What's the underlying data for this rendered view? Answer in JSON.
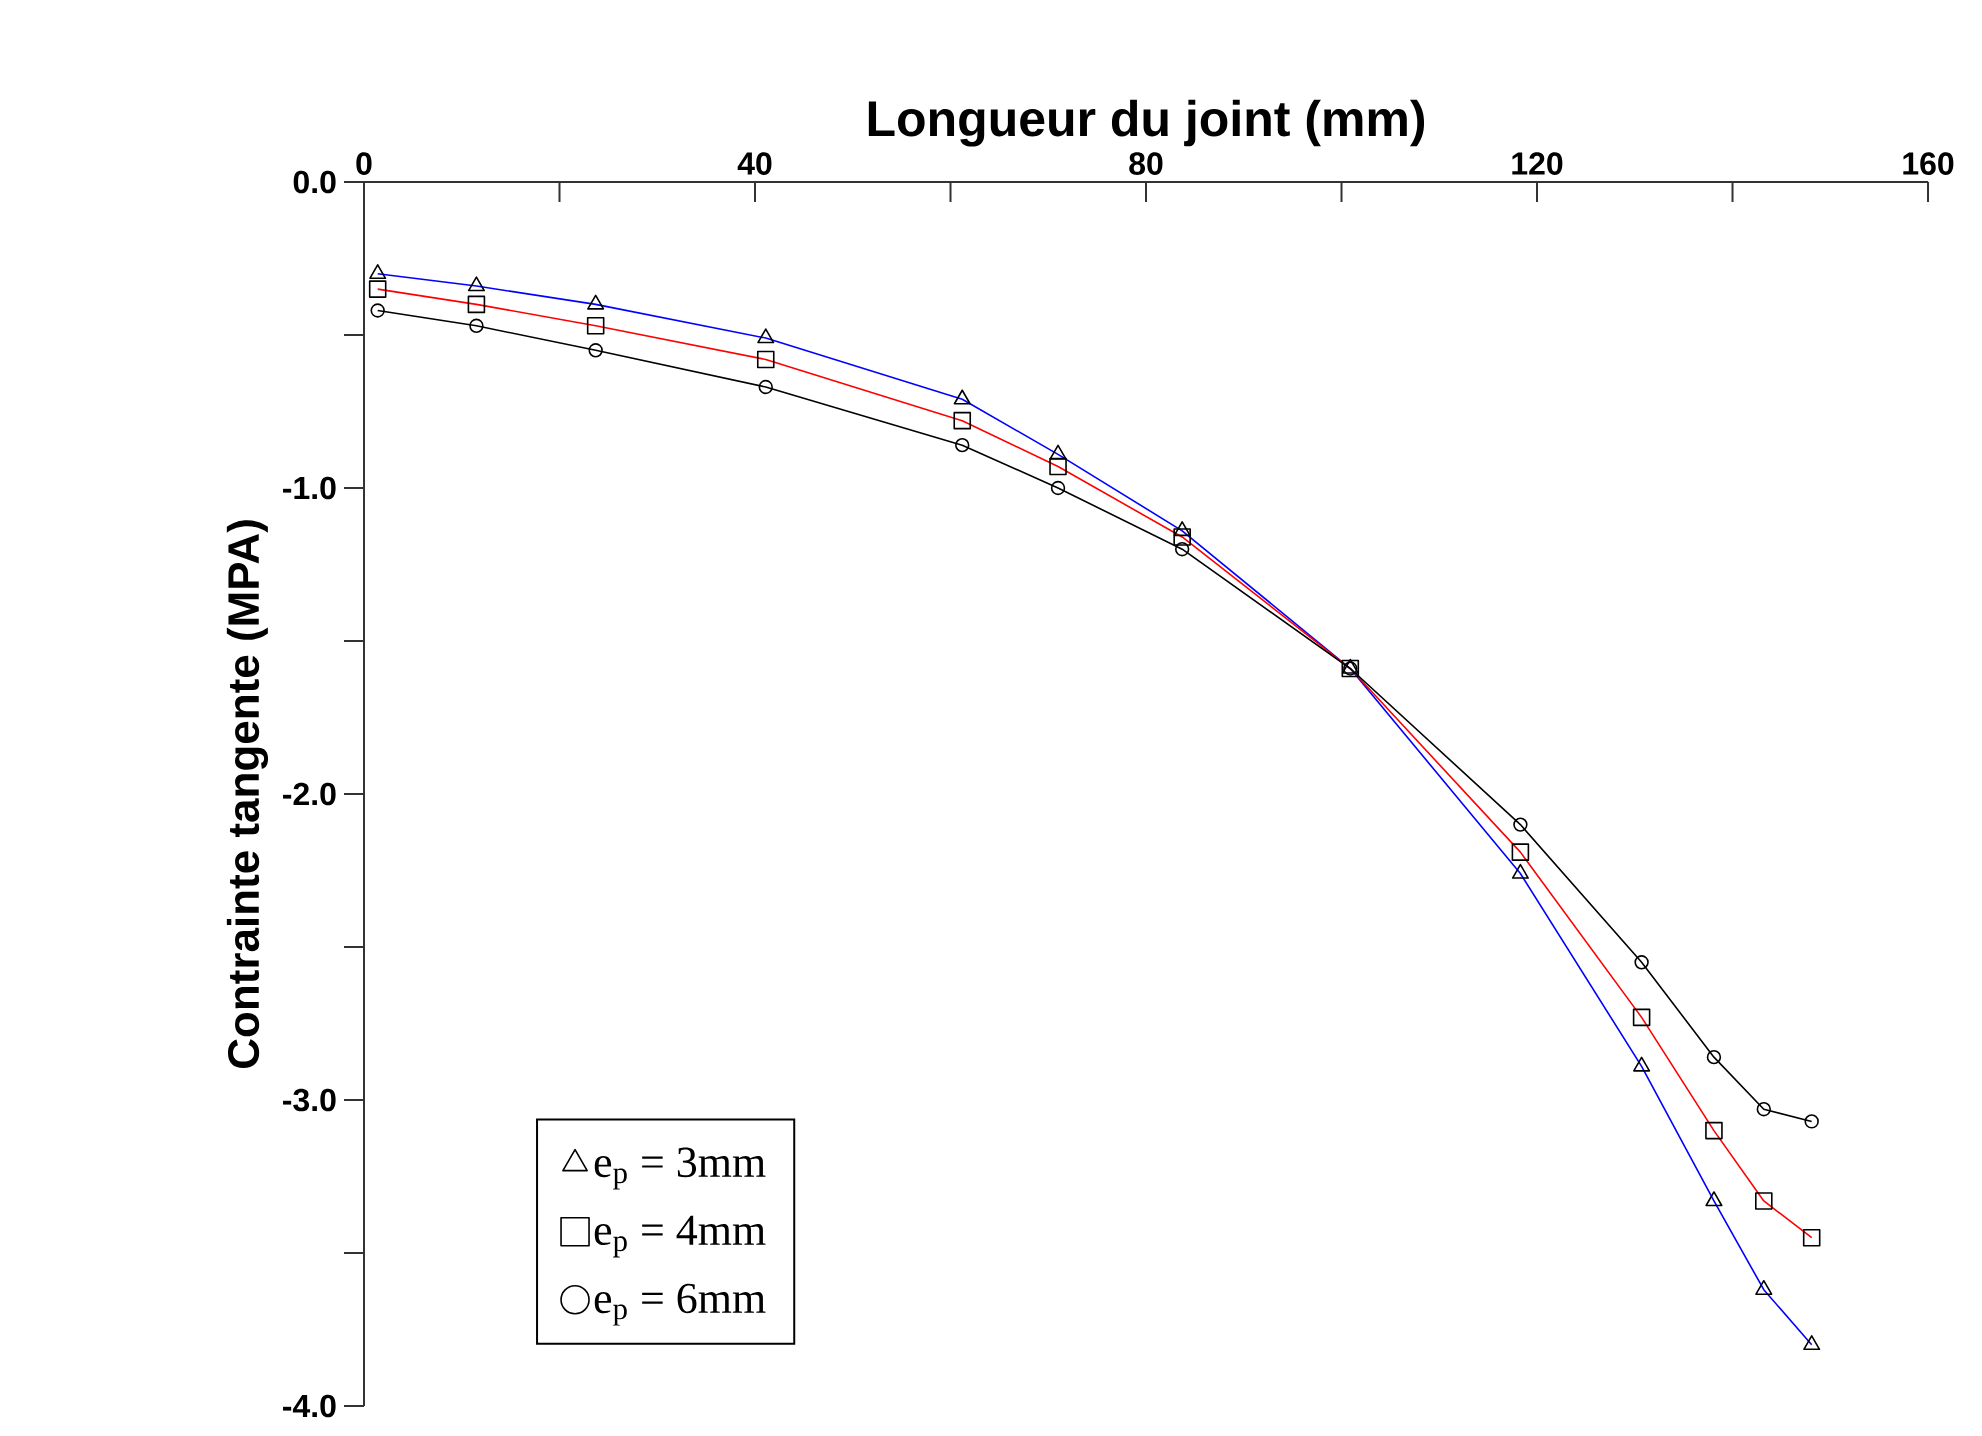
{
  "chart_data": {
    "type": "line",
    "xlabel": "Longueur du joint (mm)",
    "ylabel": "Contrainte tangente (MPA)",
    "xlim": [
      0,
      160
    ],
    "ylim": [
      -4,
      0
    ],
    "xticks": [
      0,
      {
        "value": 20,
        "label": null
      },
      40,
      {
        "value": 60,
        "label": null
      },
      80,
      {
        "value": 100,
        "label": null
      },
      120,
      {
        "value": 140,
        "label": null
      },
      160
    ],
    "yticks": [
      {
        "value": -4,
        "label": "-4.0"
      },
      {
        "value": -3.5,
        "label": null
      },
      {
        "value": -3,
        "label": "-3.0"
      },
      {
        "value": -2.5,
        "label": null
      },
      {
        "value": -2,
        "label": "-2.0"
      },
      {
        "value": -1.5,
        "label": null
      },
      {
        "value": -1,
        "label": "-1.0"
      },
      {
        "value": -0.5,
        "label": null
      },
      {
        "value": 0,
        "label": "0.0"
      }
    ],
    "x": [
      1.4,
      11.5,
      23.7,
      41.1,
      61.2,
      71,
      83.7,
      100.9,
      118.3,
      130.7,
      138.1,
      143.2,
      148.1
    ],
    "series": [
      {
        "name": "e$_{p}$ = 3mm",
        "color": "#0000ff",
        "marker": "triangle",
        "values": [
          -0.3,
          -0.34,
          -0.4,
          -0.51,
          -0.71,
          -0.89,
          -1.14,
          -1.59,
          -2.26,
          -2.89,
          -3.33,
          -3.62,
          -3.8
        ]
      },
      {
        "name": "e$_{p}$ = 4mm",
        "color": "#ff0000",
        "marker": "square",
        "values": [
          -0.35,
          -0.4,
          -0.47,
          -0.58,
          -0.78,
          -0.93,
          -1.16,
          -1.59,
          -2.19,
          -2.73,
          -3.1,
          -3.33,
          -3.45
        ]
      },
      {
        "name": "e$_{p}$ = 6mm",
        "color": "#000000",
        "marker": "circle",
        "values": [
          -0.42,
          -0.47,
          -0.55,
          -0.67,
          -0.86,
          -1.0,
          -1.2,
          -1.59,
          -2.1,
          -2.55,
          -2.86,
          -3.03,
          -3.07
        ]
      }
    ],
    "legend": "bottom left",
    "grid": false,
    "line_style": "solid"
  }
}
